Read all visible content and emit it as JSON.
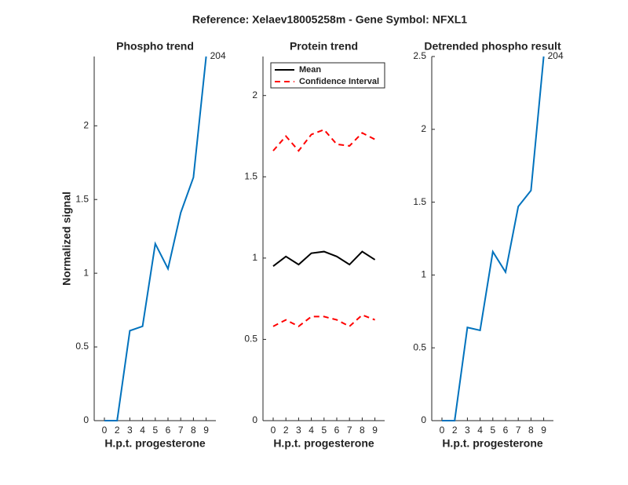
{
  "title": "Reference:  Xelaev18005258m - Gene Symbol:  NFXL1",
  "chart_data": [
    {
      "type": "line",
      "title": "Phospho trend",
      "x_label": "H.p.t. progesterone",
      "y_label": "Normalized signal",
      "categories": [
        "0",
        "2",
        "3",
        "4",
        "5",
        "6",
        "7",
        "8",
        "9"
      ],
      "series": [
        {
          "color": "#0072bd",
          "values": [
            0,
            0,
            0.61,
            0.64,
            1.2,
            1.03,
            1.41,
            1.65,
            2.47
          ]
        }
      ],
      "annotation": "204",
      "ylim": [
        0,
        2.47
      ],
      "yticks": [
        0,
        0.5,
        1,
        1.5,
        2
      ]
    },
    {
      "type": "line",
      "title": "Protein trend",
      "x_label": "H.p.t. progesterone",
      "categories": [
        "0",
        "2",
        "3",
        "4",
        "5",
        "6",
        "7",
        "8",
        "9"
      ],
      "series": [
        {
          "name": "Mean",
          "color": "#000000",
          "dashed": false,
          "values": [
            0.95,
            1.01,
            0.96,
            1.03,
            1.04,
            1.01,
            0.96,
            1.04,
            0.99
          ]
        },
        {
          "name": "Confidence Interval",
          "color": "#ff0000",
          "dashed": true,
          "values": [
            1.66,
            1.75,
            1.66,
            1.76,
            1.79,
            1.7,
            1.69,
            1.77,
            1.73
          ],
          "lower": [
            0.58,
            0.62,
            0.58,
            0.64,
            0.64,
            0.62,
            0.58,
            0.65,
            0.62
          ]
        }
      ],
      "legend": "upper left",
      "ylim": [
        0,
        2.24
      ],
      "yticks": [
        0,
        0.5,
        1,
        1.5,
        2
      ]
    },
    {
      "type": "line",
      "title": "Detrended phospho result",
      "x_label": "H.p.t. progesterone",
      "categories": [
        "0",
        "2",
        "3",
        "4",
        "5",
        "6",
        "7",
        "8",
        "9"
      ],
      "series": [
        {
          "color": "#0072bd",
          "values": [
            0,
            0,
            0.64,
            0.62,
            1.16,
            1.02,
            1.47,
            1.58,
            2.5
          ]
        }
      ],
      "annotation": "204",
      "ylim": [
        0,
        2.5
      ],
      "yticks": [
        0,
        0.5,
        1,
        1.5,
        2,
        2.5
      ]
    }
  ]
}
